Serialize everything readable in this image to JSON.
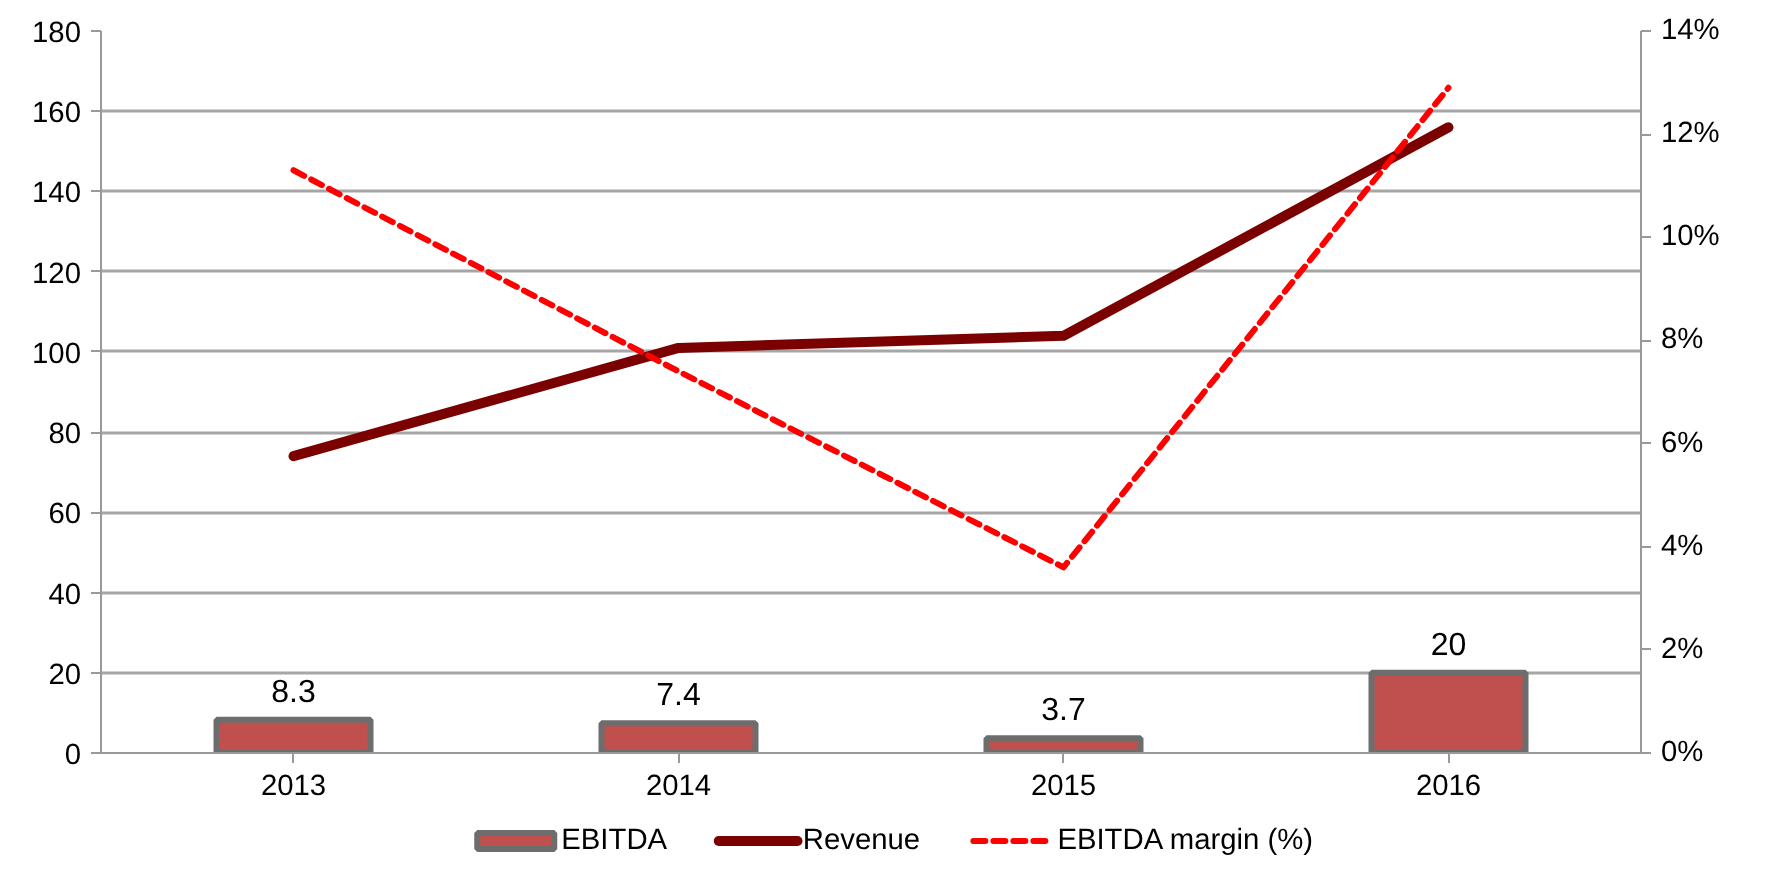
{
  "chart_data": {
    "type": "bar",
    "categories": [
      "2013",
      "2014",
      "2015",
      "2016"
    ],
    "series": [
      {
        "name": "EBITDA",
        "color": "#c0504d",
        "values": [
          8.3,
          7.4,
          3.7,
          20
        ],
        "value_labels": [
          "8.3",
          "7.4",
          "3.7",
          "20"
        ]
      },
      {
        "name": "Revenue",
        "type": "line",
        "color": "#7b0000",
        "line_style": "solid",
        "values": [
          74,
          101,
          104,
          156
        ]
      },
      {
        "name": "EBITDA margin (%)",
        "type": "line",
        "color": "#ff0000",
        "line_style": "dashed",
        "axis": "y2",
        "values": [
          11.3,
          7.4,
          3.6,
          12.9
        ]
      }
    ],
    "ylim": [
      0,
      180
    ],
    "yticks": [
      0,
      20,
      40,
      60,
      80,
      100,
      120,
      140,
      160,
      180
    ],
    "y2lim": [
      0,
      14
    ],
    "y2ticks": [
      {
        "value": 0,
        "label": "0%"
      },
      {
        "value": 2,
        "label": "2%"
      },
      {
        "value": 4,
        "label": "4%"
      },
      {
        "value": 6,
        "label": "6%"
      },
      {
        "value": 8,
        "label": "8%"
      },
      {
        "value": 10,
        "label": "10%"
      },
      {
        "value": 12,
        "label": "12%"
      },
      {
        "value": 14,
        "label": "14%"
      }
    ],
    "grid": "y",
    "legend": "bottom"
  }
}
